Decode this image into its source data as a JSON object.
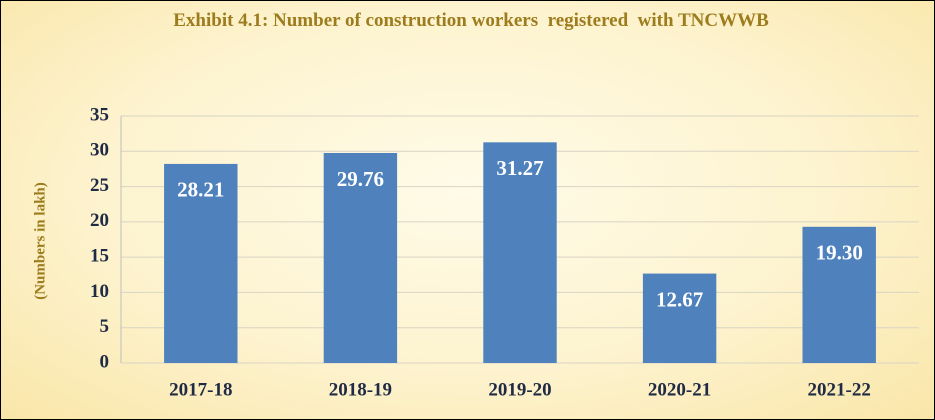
{
  "chart_data": {
    "type": "bar",
    "title": "Exhibit 4.1: Number of construction workers  registered  with TNCWWB",
    "y_label": "(Numbers in lakh)",
    "categories": [
      "2017-18",
      "2018-19",
      "2019-20",
      "2020-21",
      "2021-22"
    ],
    "values": [
      28.21,
      29.76,
      31.27,
      12.67,
      19.3
    ],
    "value_labels": [
      "28.21",
      "29.76",
      "31.27",
      "12.67",
      "19.30"
    ],
    "color": "#4f81bd",
    "ylim": [
      0,
      35
    ],
    "yticks": [
      0,
      5,
      10,
      15,
      20,
      25,
      30,
      35
    ],
    "grid": true
  }
}
